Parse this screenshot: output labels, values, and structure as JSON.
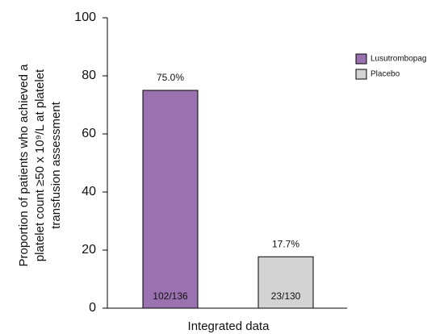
{
  "chart_data": {
    "type": "bar",
    "y_label": [
      "Proportion of patients who achieved a",
      "platelet count ≥50 x 10⁹/L at platelet",
      "transfusion assessment"
    ],
    "x_label": "Integrated data",
    "categories": [
      null
    ],
    "series": [
      {
        "name": "Lusutrombopag",
        "color": "#9b72b0",
        "values": [
          75.0
        ],
        "value_labels": [
          "75.0%"
        ],
        "count_labels": [
          "102/136"
        ]
      },
      {
        "name": "Placebo",
        "color": "#d3d3d3",
        "values": [
          17.7
        ],
        "value_labels": [
          "17.7%"
        ],
        "count_labels": [
          "23/130"
        ]
      }
    ],
    "ylim": [
      0,
      100
    ],
    "yticks": [
      0,
      20,
      40,
      60,
      80,
      100
    ],
    "legend": "right"
  }
}
